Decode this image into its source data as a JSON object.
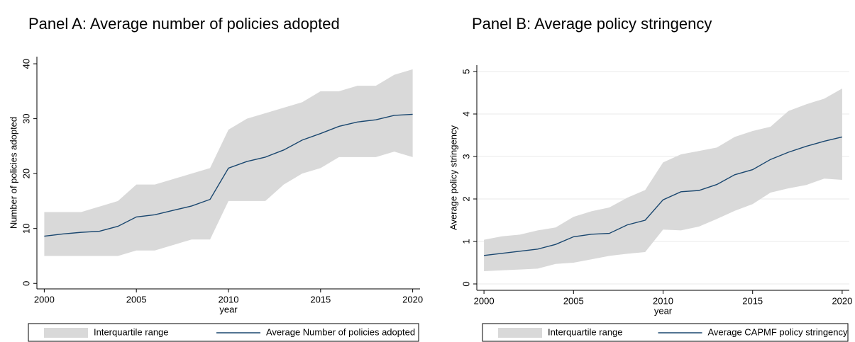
{
  "chart_data": [
    {
      "type": "band-line",
      "title": "Panel A: Average number of policies adopted",
      "x_label": "year",
      "y_label": "Number of policies adopted",
      "x": [
        2000,
        2001,
        2002,
        2003,
        2004,
        2005,
        2006,
        2007,
        2008,
        2009,
        2010,
        2011,
        2012,
        2013,
        2014,
        2015,
        2016,
        2017,
        2018,
        2019,
        2020
      ],
      "xlim": [
        1999.6,
        2020.4
      ],
      "xticks": [
        2000,
        2005,
        2010,
        2015,
        2020
      ],
      "ylim": [
        -1,
        41.3
      ],
      "yticks": [
        0,
        10,
        20,
        30,
        40
      ],
      "grid": false,
      "series": [
        {
          "name": "Interquartile range",
          "color": "#d9d9d9",
          "lower": [
            5,
            5,
            5,
            5,
            5,
            6,
            6,
            7,
            8,
            8,
            15,
            15,
            15,
            18,
            20,
            21,
            23,
            23,
            23,
            24,
            23
          ],
          "upper": [
            13,
            13,
            13,
            14,
            15,
            18,
            18,
            19,
            20,
            21,
            28,
            30,
            31,
            32,
            33,
            35,
            35,
            36,
            36,
            38,
            39
          ]
        },
        {
          "name": "Average Number of policies adopted",
          "color": "#1a476f",
          "values": [
            8.6,
            9.0,
            9.3,
            9.5,
            10.4,
            12.1,
            12.5,
            13.3,
            14.1,
            15.3,
            21.0,
            22.2,
            23.0,
            24.3,
            26.1,
            27.3,
            28.6,
            29.4,
            29.8,
            30.6,
            30.8
          ]
        }
      ]
    },
    {
      "type": "band-line",
      "title": "Panel B: Average policy stringency",
      "x_label": "year",
      "y_label": "Average policy stringency",
      "x": [
        2000,
        2001,
        2002,
        2003,
        2004,
        2005,
        2006,
        2007,
        2008,
        2009,
        2010,
        2011,
        2012,
        2013,
        2014,
        2015,
        2016,
        2017,
        2018,
        2019,
        2020
      ],
      "xlim": [
        1999.6,
        2020.4
      ],
      "xticks": [
        2000,
        2005,
        2010,
        2015,
        2020
      ],
      "ylim": [
        -0.15,
        5.15
      ],
      "yticks": [
        0,
        1,
        2,
        3,
        4,
        5
      ],
      "grid": true,
      "series": [
        {
          "name": "Interquartile range",
          "color": "#d9d9d9",
          "lower": [
            0.3,
            0.32,
            0.34,
            0.36,
            0.47,
            0.5,
            0.58,
            0.66,
            0.71,
            0.75,
            1.28,
            1.26,
            1.35,
            1.53,
            1.72,
            1.88,
            2.15,
            2.25,
            2.33,
            2.48,
            2.45
          ],
          "upper": [
            1.04,
            1.12,
            1.16,
            1.26,
            1.33,
            1.58,
            1.71,
            1.8,
            2.03,
            2.21,
            2.86,
            3.05,
            3.13,
            3.21,
            3.46,
            3.6,
            3.7,
            4.07,
            4.23,
            4.36,
            4.6
          ]
        },
        {
          "name": "Average CAPMF policy stringency",
          "color": "#1a476f",
          "values": [
            0.67,
            0.72,
            0.77,
            0.82,
            0.93,
            1.11,
            1.17,
            1.19,
            1.39,
            1.5,
            1.98,
            2.17,
            2.2,
            2.34,
            2.57,
            2.69,
            2.93,
            3.1,
            3.24,
            3.36,
            3.46
          ]
        }
      ]
    }
  ]
}
